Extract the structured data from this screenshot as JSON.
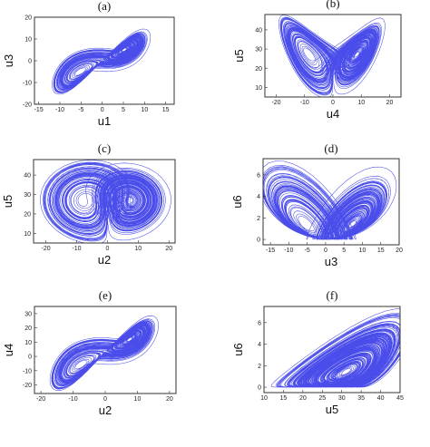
{
  "colors": {
    "trajectory": "#2a2ee6",
    "frame": "#333333"
  },
  "chart_data": [
    {
      "type": "line",
      "panel_title": "(a)",
      "xlabel": "u1",
      "ylabel": "u3",
      "xlim": [
        -16,
        17
      ],
      "ylim": [
        -20,
        20
      ],
      "xticks": [
        "-15",
        "-10",
        "-5",
        "0",
        "5",
        "10",
        "15"
      ],
      "yticks": [
        "-20",
        "-10",
        "0",
        "10",
        "20"
      ],
      "attractor": {
        "kind": "lorenz",
        "x": "x",
        "y": "y",
        "sx": 0.62,
        "ox": 0,
        "sy": 0.6,
        "oy": 0
      }
    },
    {
      "type": "line",
      "panel_title": "(b)",
      "xlabel": "u4",
      "ylabel": "u5",
      "xlim": [
        -24,
        24
      ],
      "ylim": [
        5,
        48
      ],
      "xticks": [
        "-20",
        "-10",
        "0",
        "10",
        "20"
      ],
      "yticks": [
        "10",
        "20",
        "30",
        "40"
      ],
      "attractor": {
        "kind": "lorenz",
        "x": "x",
        "y": "z",
        "sx": 1.0,
        "ox": 0,
        "sy": 1.0,
        "oy": 0
      }
    },
    {
      "type": "line",
      "panel_title": "(c)",
      "xlabel": "u2",
      "ylabel": "u5",
      "xlim": [
        -24,
        22
      ],
      "ylim": [
        5,
        48
      ],
      "xticks": [
        "-20",
        "-10",
        "0",
        "10",
        "20"
      ],
      "yticks": [
        "10",
        "20",
        "30",
        "40"
      ],
      "attractor": {
        "kind": "lorenz",
        "x": "y",
        "y": "z",
        "sx": 0.85,
        "ox": 0,
        "sy": 1.0,
        "oy": 0
      }
    },
    {
      "type": "line",
      "panel_title": "(d)",
      "xlabel": "u3",
      "ylabel": "u6",
      "xlim": [
        -17,
        20
      ],
      "ylim": [
        -0.5,
        7.5
      ],
      "xticks": [
        "-15",
        "-10",
        "-5",
        "0",
        "5",
        "10",
        "15",
        "20"
      ],
      "yticks": [
        "0",
        "2",
        "4",
        "6"
      ],
      "attractor": {
        "kind": "lorenz",
        "x": "y",
        "y": "v6",
        "sx": 0.75,
        "ox": 1.0,
        "sy": 1.0,
        "oy": 0
      }
    },
    {
      "type": "line",
      "panel_title": "(e)",
      "xlabel": "u2",
      "ylabel": "u4",
      "xlim": [
        -22,
        22
      ],
      "ylim": [
        -26,
        35
      ],
      "xticks": [
        "-20",
        "-10",
        "0",
        "10",
        "20"
      ],
      "yticks": [
        "-20",
        "-10",
        "0",
        "10",
        "20",
        "30"
      ],
      "attractor": {
        "kind": "lorenz",
        "x": "x",
        "y": "y",
        "sx": 0.9,
        "ox": 0,
        "sy": 1.05,
        "oy": 3
      }
    },
    {
      "type": "line",
      "panel_title": "(f)",
      "xlabel": "u5",
      "ylabel": "u6",
      "xlim": [
        10,
        45
      ],
      "ylim": [
        -0.5,
        7.5
      ],
      "xticks": [
        "10",
        "15",
        "20",
        "25",
        "30",
        "35",
        "40",
        "45"
      ],
      "yticks": [
        "0",
        "2",
        "4",
        "6"
      ],
      "attractor": {
        "kind": "lorenz",
        "x": "z",
        "y": "v6",
        "sx": 0.85,
        "ox": 8,
        "sy": 1.0,
        "oy": 0
      }
    }
  ]
}
